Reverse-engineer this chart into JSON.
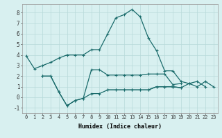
{
  "xlabel": "Humidex (Indice chaleur)",
  "x": [
    0,
    1,
    2,
    3,
    4,
    5,
    6,
    7,
    8,
    9,
    10,
    11,
    12,
    13,
    14,
    15,
    16,
    17,
    18,
    19,
    20,
    21,
    22,
    23
  ],
  "line1": [
    3.9,
    2.7,
    3.0,
    3.3,
    3.7,
    4.0,
    4.0,
    4.0,
    4.5,
    4.5,
    6.0,
    7.5,
    7.8,
    8.3,
    7.6,
    5.6,
    4.4,
    2.5,
    2.5,
    1.5,
    1.3,
    1.5,
    1.0,
    null
  ],
  "line2": [
    null,
    null,
    2.0,
    2.0,
    0.5,
    -0.8,
    -0.3,
    -0.1,
    2.6,
    2.6,
    2.1,
    2.1,
    2.1,
    2.1,
    2.1,
    2.2,
    2.2,
    2.2,
    1.2,
    1.3,
    null,
    null,
    null,
    null
  ],
  "line3": [
    null,
    null,
    2.0,
    2.0,
    0.5,
    -0.8,
    -0.3,
    -0.1,
    0.35,
    0.35,
    0.7,
    0.7,
    0.7,
    0.7,
    0.7,
    0.7,
    1.0,
    1.0,
    1.0,
    0.9,
    null,
    null,
    null,
    null
  ],
  "line4": [
    null,
    null,
    null,
    null,
    null,
    null,
    null,
    null,
    null,
    null,
    0.7,
    0.7,
    0.7,
    0.7,
    0.7,
    0.7,
    1.0,
    1.0,
    1.0,
    0.9,
    1.3,
    1.0,
    1.5,
    1.0
  ],
  "line_color": "#1a6b6b",
  "bg_color": "#d8f0f0",
  "grid_color": "#b8dada",
  "ylim": [
    -1.5,
    8.8
  ],
  "yticks": [
    -1,
    0,
    1,
    2,
    3,
    4,
    5,
    6,
    7,
    8
  ]
}
